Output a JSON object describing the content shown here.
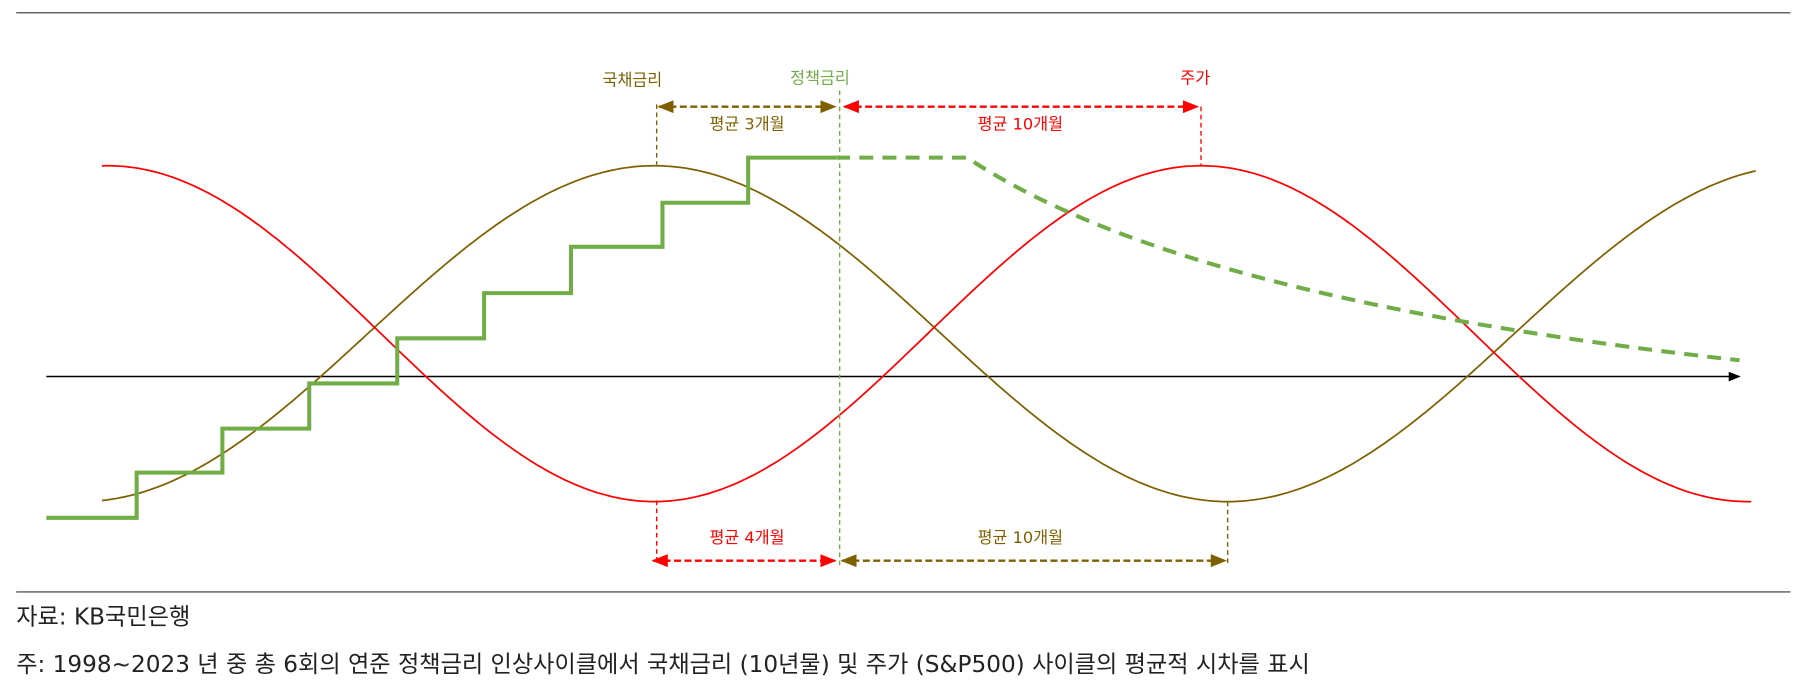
{
  "labels": {
    "bond_rate": "국채금리",
    "policy_rate": "정책금리",
    "stock": "주가"
  },
  "lags": {
    "top_bond_policy": "평균 3개월",
    "top_policy_stock": "평균 10개월",
    "bottom_stock_policy": "평균 4개월",
    "bottom_policy_bond": "평균 10개월"
  },
  "source": "자료: KB국민은행",
  "note": "주: 1998~2023 년 중 총 6회의 연준 정책금리 인상사이클에서 국채금리 (10년물) 및 주가 (S&P500) 사이클의 평균적 시차를 표시"
}
